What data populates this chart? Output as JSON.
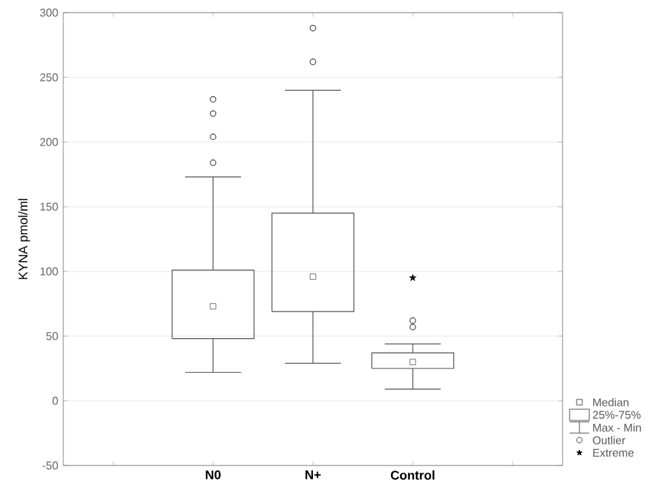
{
  "chart_data": {
    "type": "box",
    "ylabel": "KYNA pmol/ml",
    "categories": [
      "N0",
      "N+",
      "Control"
    ],
    "boxes": [
      {
        "low": 22,
        "q1": 48,
        "median": 73,
        "q3": 101,
        "high": 173
      },
      {
        "low": 29,
        "q1": 69,
        "median": 96,
        "q3": 145,
        "high": 240
      },
      {
        "low": 9,
        "q1": 25,
        "median": 30,
        "q3": 37,
        "high": 44
      }
    ],
    "series": [
      {
        "type": "scatter",
        "name": "Outlier",
        "marker": "circle",
        "color": "#404040",
        "x": [
          "N0",
          "N0",
          "N0",
          "N0",
          "N+",
          "N+",
          "Control",
          "Control"
        ],
        "values": [
          184,
          204,
          222,
          233,
          262,
          288,
          57,
          62
        ]
      },
      {
        "type": "scatter",
        "name": "Extreme",
        "marker": "star",
        "color": "#000000",
        "x": [
          "Control"
        ],
        "values": [
          95
        ]
      }
    ],
    "annotations": [
      "Median",
      "25%-75%",
      "Max - Min"
    ],
    "ylim": [
      -50,
      300
    ],
    "yticks": [
      -50,
      0,
      50,
      100,
      150,
      200,
      250,
      300
    ],
    "grid": "y",
    "legend": "bottom right"
  }
}
